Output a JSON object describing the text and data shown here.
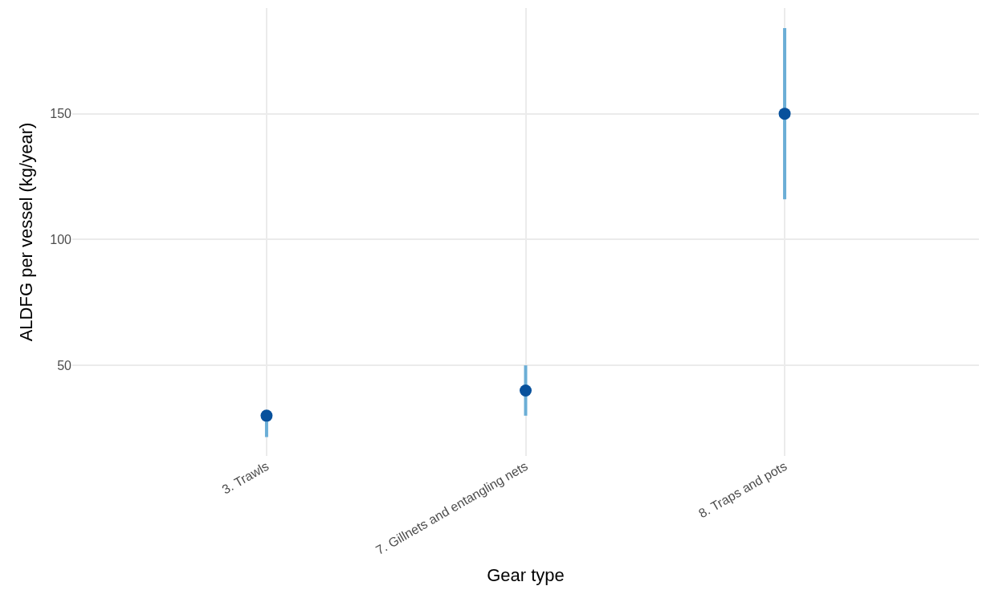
{
  "chart_data": {
    "type": "scatter",
    "xlabel": "Gear type",
    "ylabel": "ALDFG per vessel (kg/year)",
    "categories": [
      "3. Trawls",
      "7. Gillnets and entangling nets",
      "8. Traps and pots"
    ],
    "series": [
      {
        "color": "#08519c",
        "values": [
          30,
          40,
          150
        ],
        "errors": [
          [
            21.5,
            30
          ],
          [
            30,
            50
          ],
          [
            116,
            184
          ]
        ]
      }
    ],
    "ylim": [
      14,
      192
    ],
    "yticks": [
      50,
      100,
      150
    ],
    "grid": true,
    "marker": "circle",
    "legend": false
  }
}
